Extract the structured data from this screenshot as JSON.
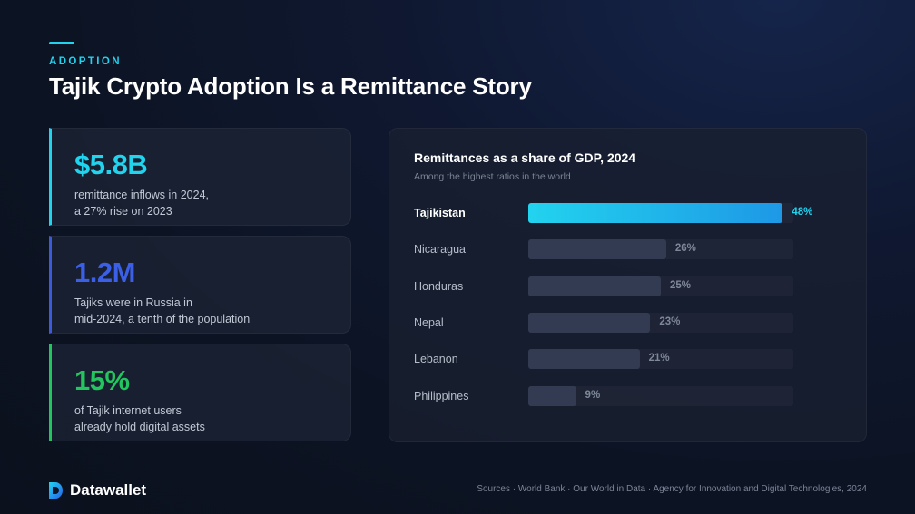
{
  "header": {
    "eyebrow": "ADOPTION",
    "title": "Tajik Crypto Adoption Is a Remittance Story"
  },
  "stats": [
    {
      "value": "$5.8B",
      "line1": "remittance inflows in 2024,",
      "line2": "a 27% rise on 2023"
    },
    {
      "value": "1.2M",
      "line1": "Tajiks were in Russia in",
      "line2": "mid-2024, a tenth of the population"
    },
    {
      "value": "15%",
      "line1": "of Tajik internet users",
      "line2": "already hold digital assets"
    }
  ],
  "colors": {
    "accent_cyan": "#22d3ee",
    "accent_blue": "#3b5fe6",
    "accent_green": "#22c55e",
    "bar_default": "#323b51"
  },
  "chart_data": {
    "type": "bar",
    "orientation": "horizontal",
    "title": "Remittances as a share of GDP, 2024",
    "subtitle": "Among the highest ratios in the world",
    "categories": [
      "Tajikistan",
      "Nicaragua",
      "Honduras",
      "Nepal",
      "Lebanon",
      "Philippines"
    ],
    "values": [
      48,
      26,
      25,
      23,
      21,
      9
    ],
    "value_labels": [
      "48%",
      "26%",
      "25%",
      "23%",
      "21%",
      "9%"
    ],
    "highlight": "Tajikistan",
    "xlim": [
      0,
      50
    ],
    "grid": false
  },
  "footer": {
    "brand": "Datawallet",
    "sources": "Sources · World Bank · Our World in Data · Agency for Innovation and Digital Technologies, 2024"
  }
}
